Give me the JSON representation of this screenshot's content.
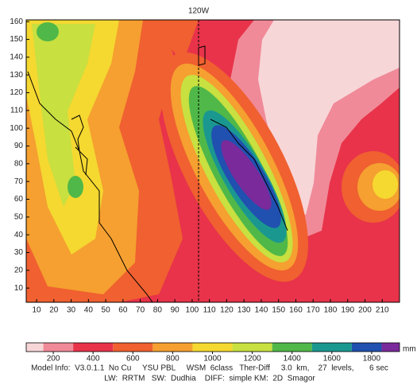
{
  "map_label": "120W",
  "chart_data": {
    "type": "contour",
    "xlim": [
      4,
      220
    ],
    "xticks": [
      10,
      20,
      30,
      40,
      50,
      60,
      70,
      80,
      90,
      100,
      110,
      120,
      130,
      140,
      150,
      160,
      170,
      180,
      190,
      200,
      210
    ],
    "ylim": [
      2,
      161
    ],
    "yticks": [
      10,
      20,
      30,
      40,
      50,
      60,
      70,
      80,
      90,
      100,
      110,
      120,
      130,
      140,
      150,
      160
    ]
  },
  "colorbar": {
    "lim": [
      64,
      1940
    ],
    "ticks": [
      200,
      400,
      600,
      800,
      1000,
      1200,
      1400,
      1600,
      1800
    ],
    "unit": "mm",
    "levels": [
      64,
      150,
      300,
      500,
      700,
      900,
      1100,
      1300,
      1500,
      1700,
      1850,
      1940
    ],
    "colors": [
      "#f7d6d8",
      "#f08a98",
      "#e8334a",
      "#f06030",
      "#f5a030",
      "#f5d830",
      "#c8e040",
      "#50b848",
      "#1a9890",
      "#2050b0",
      "#7a2a9a"
    ]
  },
  "footer": {
    "lines": [
      "Model Info:  V3.0.1.1  No Cu     YSU PBL     WSM  6class   Ther-Diff     3.0  km,    27  levels,       6 sec",
      "LW:  RRTM   SW:  Dudhia    DIFF:  simple KM:  2D  Smagor"
    ]
  }
}
